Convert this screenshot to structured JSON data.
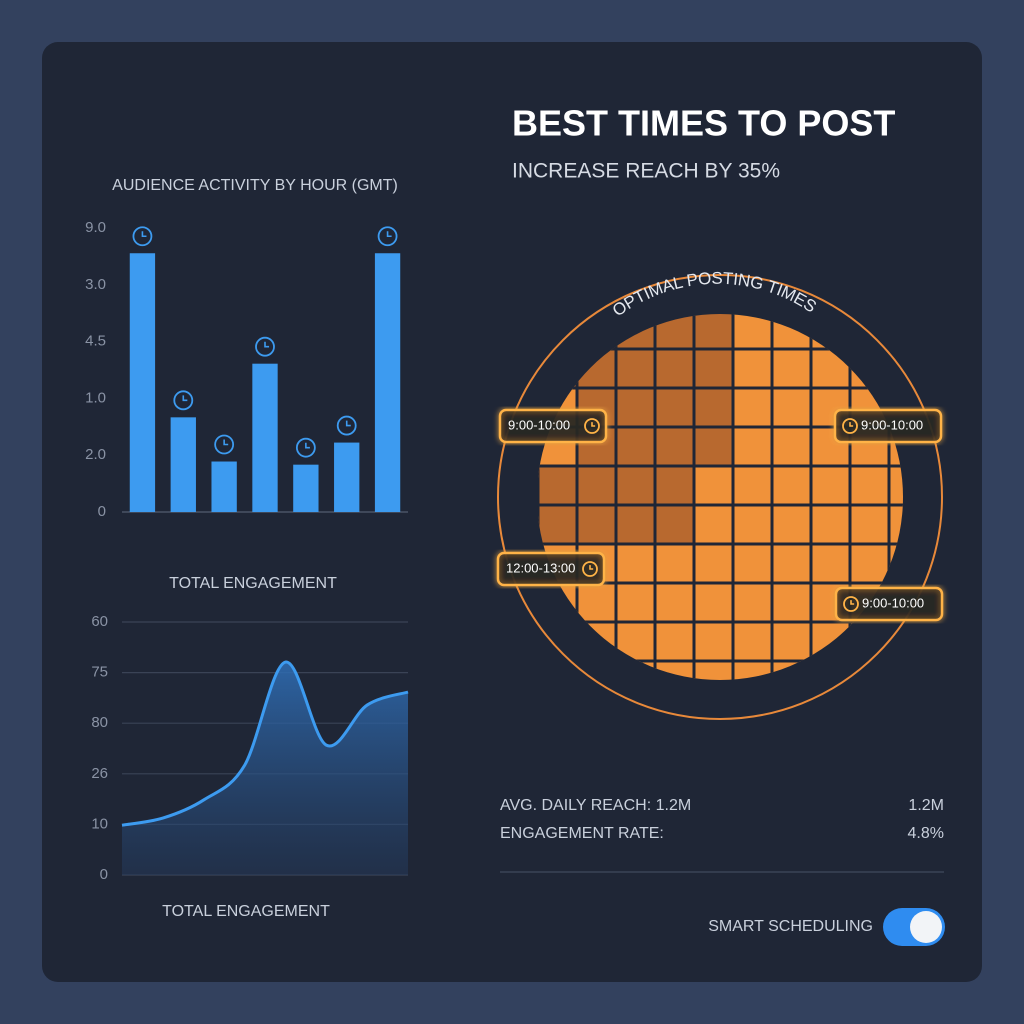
{
  "header": {
    "title": "BEST TIMES TO POST",
    "subtitle": "INCREASE REACH BY 35%"
  },
  "chart_data": [
    {
      "type": "bar",
      "title": "AUDIENCE ACTIVITY BY HOUR (GMT)",
      "values": [
        8.2,
        3.0,
        1.6,
        4.7,
        1.5,
        2.2,
        8.2
      ],
      "color": "#3d9bf0",
      "ylim": [
        0,
        9
      ],
      "tick_labels": [
        "9.0",
        "3.0",
        "4.5",
        "1.0",
        "2.0",
        "0"
      ]
    },
    {
      "type": "line",
      "title": "TOTAL ENGAGEMENT",
      "x_label": "TOTAL ENGAGEMENT",
      "values": [
        11.8,
        13.5,
        17.8,
        26,
        50.5,
        30.8,
        40.3,
        43.4
      ],
      "color": "#3d9bf0",
      "ylim": [
        0,
        60
      ],
      "tick_labels": [
        "60",
        "75",
        "80",
        "26",
        "10",
        "0"
      ],
      "grid": true
    }
  ],
  "heatmap": {
    "title": "OPTIMAL POSTING TIMES",
    "slots": [
      "9:00-10:00",
      "9:00-10:00",
      "12:00-13:00",
      "9:00-10:00"
    ]
  },
  "stats": [
    {
      "label": "AVG. DAILY REACH: 1.2M",
      "value": "1.2M"
    },
    {
      "label": "ENGAGEMENT RATE:",
      "value": "4.8%"
    }
  ],
  "toggle": {
    "label": "SMART SCHEDULING"
  }
}
